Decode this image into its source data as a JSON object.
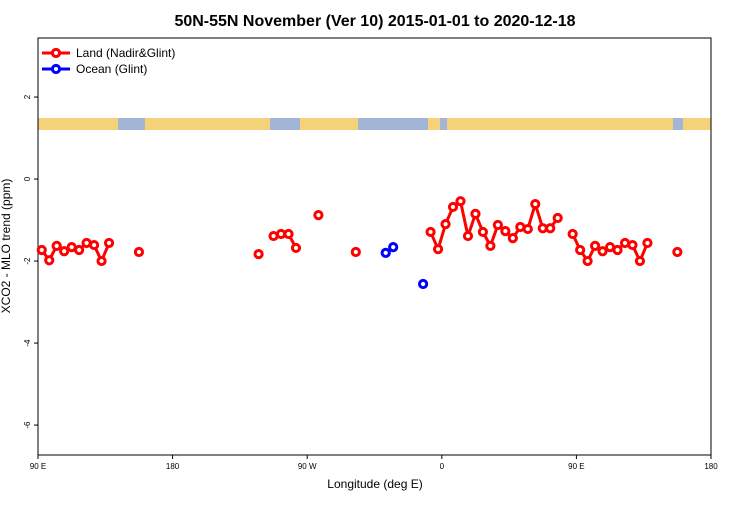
{
  "chart_data": {
    "type": "line",
    "title": "50N-55N November (Ver 10)   2015-01-01 to 2020-12-18",
    "x_label": "Longitude (deg E)",
    "y_label": "XCO2 - MLO trend (ppm)",
    "xlim": [
      90,
      540
    ],
    "xticks": [
      {
        "value": 90,
        "label": "90 E"
      },
      {
        "value": 180,
        "label": "180"
      },
      {
        "value": 270,
        "label": "90 W"
      },
      {
        "value": 360,
        "label": "0"
      },
      {
        "value": 450,
        "label": "90 E"
      },
      {
        "value": 540,
        "label": "180"
      }
    ],
    "ylim": [
      -6.73,
      3.44
    ],
    "yticks": [
      -6,
      -4,
      -2,
      0,
      2
    ],
    "legend": "topleft",
    "series": [
      {
        "name": "Land (Nadir&Glint)",
        "color": "#ff0000",
        "x": [
          92.5,
          97.5,
          102.5,
          107.5,
          112.5,
          117.5,
          122.5,
          127.5,
          132.5,
          137.5,
          142.5,
          157.5,
          162.5,
          237.5,
          242.5,
          247.5,
          252.5,
          257.5,
          262.5,
          267.5,
          277.5,
          282.5,
          302.5,
          307.5,
          352.5,
          357.5,
          362.5,
          367.5,
          372.5,
          377.5,
          382.5,
          387.5,
          392.5,
          397.5,
          402.5,
          407.5,
          412.5,
          417.5,
          422.5,
          427.5,
          432.5,
          437.5,
          442.5,
          447.5,
          452.5,
          457.5,
          462.5,
          467.5,
          472.5,
          477.5,
          482.5,
          487.5,
          492.5,
          497.5,
          502.5,
          517.5
        ],
        "values": [
          -1.73,
          -1.98,
          -1.63,
          -1.76,
          -1.66,
          -1.73,
          -1.56,
          -1.61,
          -2.0,
          -1.56,
          null,
          -1.78,
          null,
          -1.83,
          null,
          -1.39,
          -1.34,
          -1.34,
          -1.68,
          null,
          -0.88,
          null,
          -1.78,
          null,
          -1.29,
          -1.71,
          -1.1,
          -0.68,
          -0.54,
          -1.39,
          -0.85,
          -1.29,
          -1.63,
          -1.12,
          -1.27,
          -1.44,
          -1.17,
          -1.22,
          -0.61,
          -1.2,
          -1.2,
          -0.95,
          null,
          -1.34,
          -1.73,
          -2.0,
          -1.63,
          -1.76,
          -1.66,
          -1.73,
          -1.56,
          -1.61,
          -2.0,
          -1.56,
          null,
          -1.78
        ]
      },
      {
        "name": "Ocean (Glint)",
        "color": "#0000ff",
        "x": [
          322.5,
          327.5,
          332.5,
          347.5
        ],
        "values": [
          -1.8,
          -1.66,
          null,
          -2.56
        ]
      }
    ]
  }
}
